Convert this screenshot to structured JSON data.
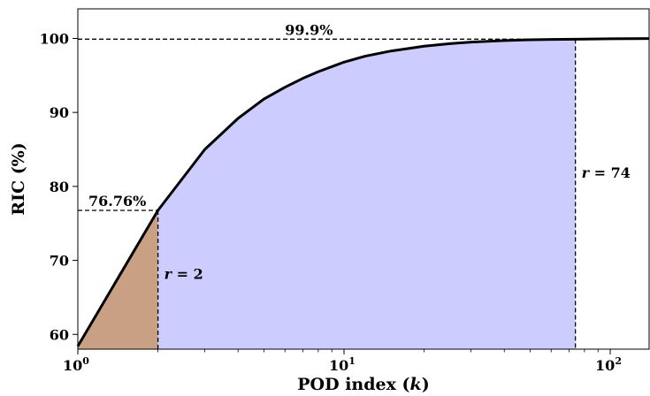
{
  "chart_data": {
    "type": "area",
    "xlabel_text": "POD index",
    "xlabel_var": "k",
    "ylabel": "RIC (%)",
    "xscale": "log",
    "xlim": [
      1,
      140
    ],
    "ylim": [
      58,
      104
    ],
    "grid": false,
    "x_ticks": [
      {
        "value": 1,
        "base": "10",
        "exp": "0"
      },
      {
        "value": 10,
        "base": "10",
        "exp": "1"
      },
      {
        "value": 100,
        "base": "10",
        "exp": "2"
      }
    ],
    "y_ticks": [
      {
        "value": 60,
        "label": "60"
      },
      {
        "value": 70,
        "label": "70"
      },
      {
        "value": 80,
        "label": "80"
      },
      {
        "value": 90,
        "label": "90"
      },
      {
        "value": 100,
        "label": "100"
      }
    ],
    "series": [
      {
        "color": "#000000",
        "x": [
          1,
          2,
          3,
          4,
          5,
          6,
          7,
          8,
          10,
          12,
          15,
          20,
          25,
          30,
          40,
          50,
          60,
          74,
          100,
          140
        ],
        "y": [
          58.4,
          76.76,
          85.0,
          89.2,
          91.8,
          93.4,
          94.6,
          95.5,
          96.8,
          97.6,
          98.3,
          98.95,
          99.3,
          99.5,
          99.72,
          99.82,
          99.87,
          99.9,
          99.95,
          99.98
        ]
      }
    ],
    "shaded_regions": [
      {
        "x_from": 1,
        "x_to": 2,
        "color": "#c9a083"
      },
      {
        "x_from": 2,
        "x_to": 74,
        "color": "#ccccff"
      }
    ],
    "annotations": [
      {
        "id": "ric-r2",
        "text": "76.76%",
        "x": 2,
        "y": 76.76
      },
      {
        "id": "ric-r74",
        "text": "99.9%",
        "x": 74,
        "y": 99.9
      }
    ],
    "rank_labels": [
      {
        "id": "r2",
        "var": "r",
        "value": "2",
        "x": 2
      },
      {
        "id": "r74",
        "var": "r",
        "value": "74",
        "x": 74
      }
    ]
  }
}
